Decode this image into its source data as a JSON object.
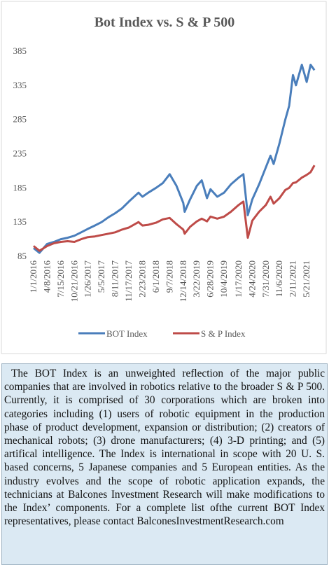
{
  "chart_data": {
    "type": "line",
    "title": "Bot Index vs. S & P 500",
    "x": [
      "1/1/2016",
      "2/12/2016",
      "4/8/2016",
      "5/27/2016",
      "7/15/2016",
      "9/2/2016",
      "10/21/2016",
      "12/9/2016",
      "1/26/2017",
      "3/17/2017",
      "5/5/2017",
      "6/23/2017",
      "8/11/2017",
      "9/29/2017",
      "11/17/2017",
      "1/26/2018",
      "2/23/2018",
      "4/6/2018",
      "6/1/2018",
      "7/20/2018",
      "9/7/2018",
      "10/26/2018",
      "12/14/2018",
      "12/24/2018",
      "2/1/2019",
      "3/22/2019",
      "4/26/2019",
      "6/3/2019",
      "6/28/2019",
      "8/16/2019",
      "10/4/2019",
      "11/22/2019",
      "1/17/2020",
      "2/20/2020",
      "3/23/2020",
      "4/24/2020",
      "6/12/2020",
      "7/31/2020",
      "9/2/2020",
      "9/25/2020",
      "11/6/2020",
      "12/18/2020",
      "1/15/2021",
      "2/11/2021",
      "3/5/2021",
      "4/16/2021",
      "5/21/2021",
      "6/18/2021",
      "7/16/2021"
    ],
    "series": [
      {
        "name": "BOT Index",
        "color": "#4a7ebb",
        "values": [
          97,
          90,
          103,
          106,
          110,
          112,
          115,
          120,
          125,
          130,
          135,
          142,
          148,
          155,
          165,
          178,
          172,
          178,
          185,
          192,
          205,
          188,
          163,
          150,
          168,
          188,
          196,
          170,
          183,
          172,
          178,
          190,
          200,
          205,
          145,
          168,
          190,
          215,
          232,
          220,
          250,
          285,
          305,
          350,
          335,
          365,
          340,
          365,
          357
        ]
      },
      {
        "name": "S & P Index",
        "color": "#be4b48",
        "values": [
          100,
          93,
          100,
          104,
          106,
          107,
          106,
          110,
          113,
          114,
          116,
          118,
          120,
          124,
          127,
          135,
          130,
          131,
          134,
          139,
          141,
          132,
          124,
          118,
          128,
          136,
          140,
          136,
          143,
          140,
          143,
          150,
          160,
          165,
          112,
          137,
          150,
          160,
          172,
          162,
          170,
          182,
          185,
          192,
          193,
          200,
          204,
          208,
          218
        ]
      }
    ],
    "xlim": [
      "1/1/2016",
      "7/30/2021"
    ],
    "xticks": [
      "1/1/2016",
      "4/8/2016",
      "7/15/2016",
      "10/21/2016",
      "1/26/2017",
      "5/5/2017",
      "8/11/2017",
      "11/17/2017",
      "2/23/2018",
      "6/1/2018",
      "9/7/2018",
      "12/14/2018",
      "3/22/2019",
      "6/28/2019",
      "10/4/2019",
      "1/17/2020",
      "4/24/2020",
      "7/31/2020",
      "11/6/2020",
      "2/11/2021",
      "5/21/2021"
    ],
    "ylim": [
      85,
      385
    ],
    "yticks": [
      85,
      135,
      185,
      235,
      285,
      335,
      385
    ],
    "grid": false,
    "legend": "bottom"
  },
  "text_box": {
    "text": "The BOT Index is an unweighted reflection of the major public companies that are involved in robotics relative to the broader S & P 500. Currently, it is comprised of 30 corporations which are broken into categories including (1) users of robotic equipment in the production phase of product development, expansion or distribution; (2) creators of mechanical robots; (3) drone manufacturers; (4) 3-D printing; and (5) artifical intelligence. The Index is international in scope with 20 U. S. based concerns, 5 Japanese companies and 5 European entities. As the industry evolves and the scope of robotic application expands, the technicians at Balcones Investment Research will make modifications to the Index’ components. For a complete list ofthe current BOT Index representatives, please contact BalconesInvestmentResearch.com"
  }
}
